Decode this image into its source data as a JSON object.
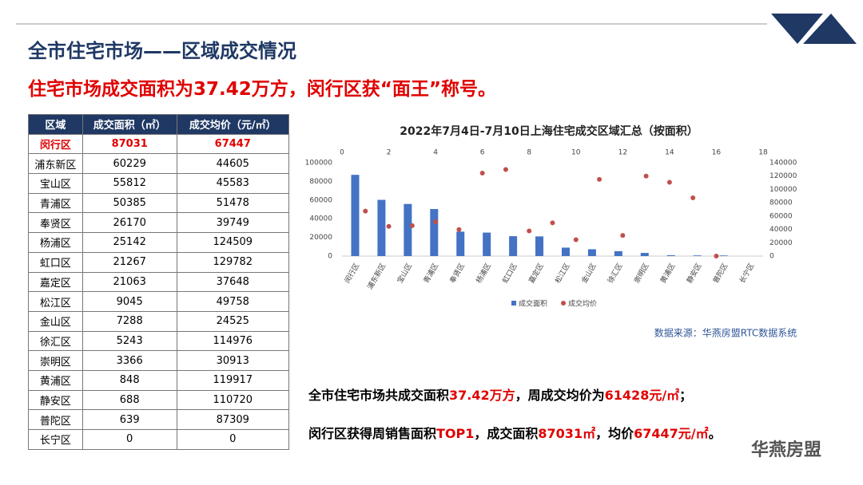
{
  "header": {
    "title": "全市住宅市场——区域成交情况",
    "subtitle": "住宅市场成交面积为37.42万方，闵行区获“面王”称号。"
  },
  "table": {
    "columns": [
      "区域",
      "成交面积（㎡）",
      "成交均价（元/㎡）"
    ],
    "rows": [
      [
        "闵行区",
        "87031",
        "67447"
      ],
      [
        "浦东新区",
        "60229",
        "44605"
      ],
      [
        "宝山区",
        "55812",
        "45583"
      ],
      [
        "青浦区",
        "50385",
        "51478"
      ],
      [
        "奉贤区",
        "26170",
        "39749"
      ],
      [
        "杨浦区",
        "25142",
        "124509"
      ],
      [
        "虹口区",
        "21267",
        "129782"
      ],
      [
        "嘉定区",
        "21063",
        "37648"
      ],
      [
        "松江区",
        "9045",
        "49758"
      ],
      [
        "金山区",
        "7288",
        "24525"
      ],
      [
        "徐汇区",
        "5243",
        "114976"
      ],
      [
        "崇明区",
        "3366",
        "30913"
      ],
      [
        "黄浦区",
        "848",
        "119917"
      ],
      [
        "静安区",
        "688",
        "110720"
      ],
      [
        "普陀区",
        "639",
        "87309"
      ],
      [
        "长宁区",
        "0",
        "0"
      ]
    ]
  },
  "chart_data": {
    "type": "combo",
    "title": "2022年7月4日-7月10日上海住宅成交区域汇总（按面积）",
    "categories": [
      "闵行区",
      "浦东新区",
      "宝山区",
      "青浦区",
      "奉贤区",
      "杨浦区",
      "虹口区",
      "嘉定区",
      "松江区",
      "金山区",
      "徐汇区",
      "崇明区",
      "黄浦区",
      "静安区",
      "普陀区",
      "长宁区"
    ],
    "series": [
      {
        "name": "成交面积",
        "type": "bar",
        "color": "#4472c4",
        "values": [
          87031,
          60229,
          55812,
          50385,
          26170,
          25142,
          21267,
          21063,
          9045,
          7288,
          5243,
          3366,
          848,
          688,
          639,
          0
        ]
      },
      {
        "name": "成交均价",
        "type": "scatter",
        "axis": "y2",
        "color": "#c0504d",
        "x": [
          1,
          2,
          3,
          4,
          5,
          6,
          7,
          8,
          9,
          10,
          11,
          12,
          13,
          14,
          15,
          16
        ],
        "values": [
          67447,
          44605,
          45583,
          51478,
          39749,
          124509,
          129782,
          37648,
          49758,
          24525,
          114976,
          30913,
          119917,
          110720,
          87309,
          0
        ]
      }
    ],
    "ylim": [
      0,
      100000
    ],
    "yticks": [
      0,
      20000,
      40000,
      60000,
      80000,
      100000
    ],
    "y2lim": [
      0,
      140000
    ],
    "y2ticks": [
      0,
      20000,
      40000,
      60000,
      80000,
      100000,
      120000,
      140000
    ],
    "xlim": [
      0,
      18
    ],
    "xticks": [
      0,
      2,
      4,
      6,
      8,
      10,
      12,
      14,
      16,
      18
    ],
    "legend": "bottom",
    "source": "数据来源：华燕房盟RTC数据系统"
  },
  "summary": {
    "line1": [
      "全市住宅市场共成交面积",
      "37.42万方",
      "，周成交均价为",
      "61428元/㎡",
      "；"
    ],
    "line2": [
      "闵行区获得周销售面积",
      "TOP1",
      "，成交面积",
      "87031㎡",
      "，均价",
      "67447元/㎡",
      "。"
    ]
  },
  "brand": "华燕房盟"
}
